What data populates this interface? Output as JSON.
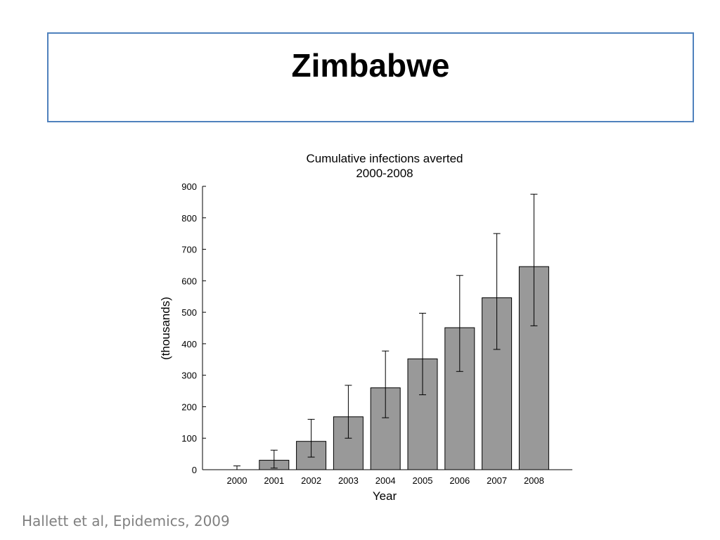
{
  "slide": {
    "title": "Zimbabwe",
    "citation": "Hallett et al, Epidemics, 2009"
  },
  "colors": {
    "title_border": "#4f81bd",
    "bar_fill": "#999999",
    "citation_text": "#808080"
  },
  "chart_data": {
    "type": "bar",
    "title": [
      "Cumulative infections averted",
      "2000-2008"
    ],
    "xlabel": "Year",
    "ylabel": "(thousands)",
    "categories": [
      "2000",
      "2001",
      "2002",
      "2003",
      "2004",
      "2005",
      "2006",
      "2007",
      "2008"
    ],
    "values": [
      0,
      30,
      90,
      168,
      260,
      352,
      451,
      546,
      645
    ],
    "error_low": [
      0,
      5,
      40,
      100,
      165,
      238,
      312,
      382,
      457
    ],
    "error_high": [
      12,
      62,
      160,
      268,
      377,
      497,
      617,
      750,
      875
    ],
    "ylim": [
      0,
      900
    ],
    "yticks": [
      0,
      100,
      200,
      300,
      400,
      500,
      600,
      700,
      800,
      900
    ],
    "grid": false,
    "legend": "none"
  }
}
